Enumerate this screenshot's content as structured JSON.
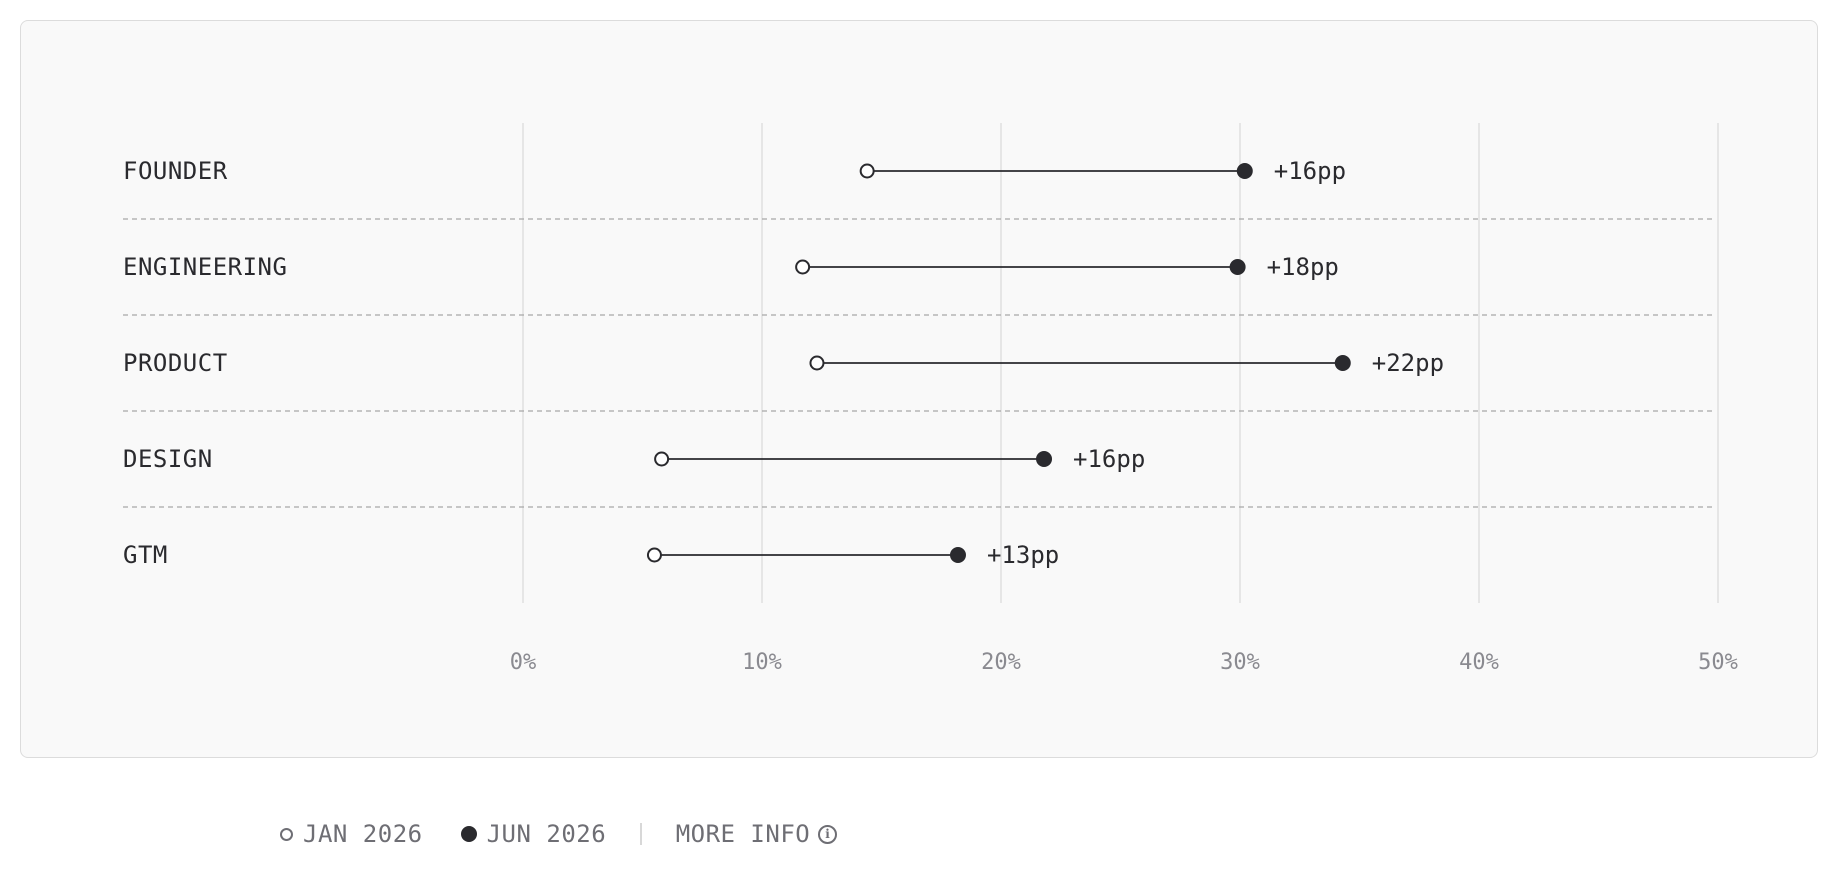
{
  "chart_data": {
    "type": "dumbbell",
    "categories": [
      "FOUNDER",
      "ENGINEERING",
      "PRODUCT",
      "DESIGN",
      "GTM"
    ],
    "series": [
      {
        "name": "JAN 2026",
        "values": [
          14.4,
          11.7,
          12.3,
          5.8,
          5.5
        ]
      },
      {
        "name": "JUN 2026",
        "values": [
          30.2,
          29.9,
          34.3,
          21.8,
          18.2
        ]
      }
    ],
    "deltas": [
      "+16pp",
      "+18pp",
      "+22pp",
      "+16pp",
      "+13pp"
    ],
    "xlim": [
      0,
      50
    ],
    "xticks": [
      0,
      10,
      20,
      30,
      40,
      50
    ],
    "xtick_labels": [
      "0%",
      "10%",
      "20%",
      "30%",
      "40%",
      "50%"
    ],
    "grid": true,
    "legend_position": "bottom-left"
  },
  "legend": {
    "jan_label": "JAN 2026",
    "jun_label": "JUN 2026",
    "more_info_label": "MORE INFO"
  },
  "colors": {
    "card_bg": "#f9f9f9",
    "ink": "#2a2a2e",
    "grid": "#e0e0e0",
    "muted": "#8a8a90"
  }
}
